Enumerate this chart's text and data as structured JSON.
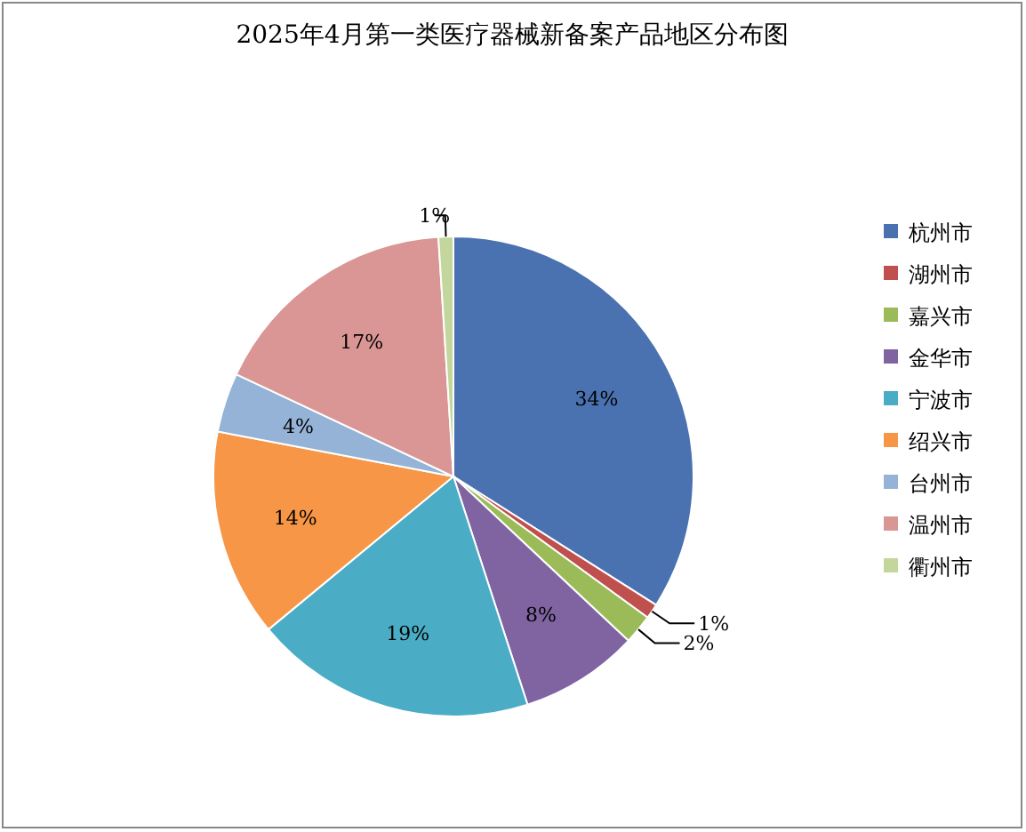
{
  "chart_data": {
    "type": "pie",
    "title": "2025年4月第一类医疗器械新备案产品地区分布图",
    "categories": [
      "杭州市",
      "湖州市",
      "嘉兴市",
      "金华市",
      "宁波市",
      "绍兴市",
      "台州市",
      "温州市",
      "衢州市"
    ],
    "values": [
      34,
      1,
      2,
      8,
      19,
      14,
      4,
      17,
      1
    ],
    "colors": [
      "#4a72b0",
      "#c0504d",
      "#9bbb59",
      "#8064a2",
      "#4bacc6",
      "#f79646",
      "#95b3d7",
      "#d99694",
      "#c3d69b"
    ],
    "value_labels": [
      "34%",
      "1%",
      "2%",
      "8%",
      "19%",
      "14%",
      "4%",
      "17%",
      "1%"
    ],
    "legend": "right"
  }
}
